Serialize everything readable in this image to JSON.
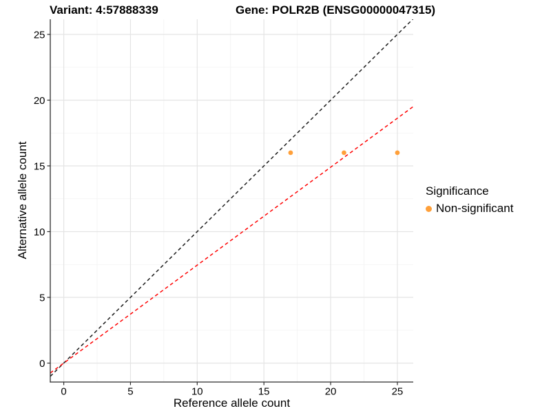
{
  "titles": {
    "left": "Variant: 4:57888339",
    "right": "Gene: POLR2B (ENSG00000047315)"
  },
  "chart_data": {
    "type": "scatter",
    "xlabel": "Reference allele count",
    "ylabel": "Alternative allele count",
    "x_ticks": [
      0,
      5,
      10,
      15,
      20,
      25
    ],
    "y_ticks": [
      0,
      5,
      10,
      15,
      20,
      25
    ],
    "x_minor_ticks": [
      2.5,
      7.5,
      12.5,
      17.5,
      22.5
    ],
    "y_minor_ticks": [
      2.5,
      7.5,
      12.5,
      17.5,
      22.5
    ],
    "xlim": [
      -1.01,
      26.19
    ],
    "ylim": [
      -1.44,
      26.15
    ],
    "grid": {
      "major_color": "#e4e4e4",
      "minor_color": "#f2f2f2"
    },
    "axis_color": "#2b2b2b",
    "series": [
      {
        "name": "Non-significant",
        "color": "#FFA03A",
        "points": [
          [
            17,
            16
          ],
          [
            21,
            16
          ],
          [
            25,
            16
          ]
        ]
      }
    ],
    "ablines": [
      {
        "name": "identity-line",
        "slope": 1,
        "intercept": 0,
        "color": "#1a1a1a",
        "linetype": "dashed"
      },
      {
        "name": "expected-ratio-line",
        "slope": 0.745,
        "intercept": 0,
        "color": "#ff0000",
        "linetype": "dashed"
      }
    ],
    "legend": {
      "title": "Significance",
      "position": "right",
      "items": [
        {
          "label": "Non-significant",
          "color": "#FFA03A"
        }
      ]
    }
  }
}
